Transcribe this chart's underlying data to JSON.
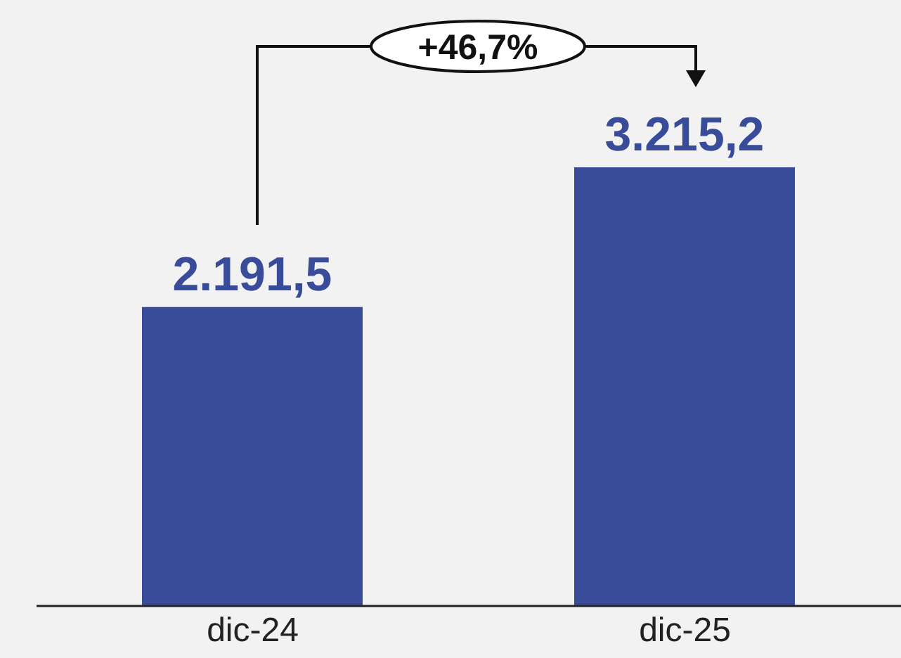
{
  "chart_data": {
    "type": "bar",
    "categories": [
      "dic-24",
      "dic-25"
    ],
    "values": [
      2191.5,
      3215.2
    ],
    "color": "#394c9a",
    "value_labels": [
      "2.191,5",
      "3.215,2"
    ],
    "annotations": [
      "+46,7%"
    ],
    "grid": false,
    "legend": false
  }
}
